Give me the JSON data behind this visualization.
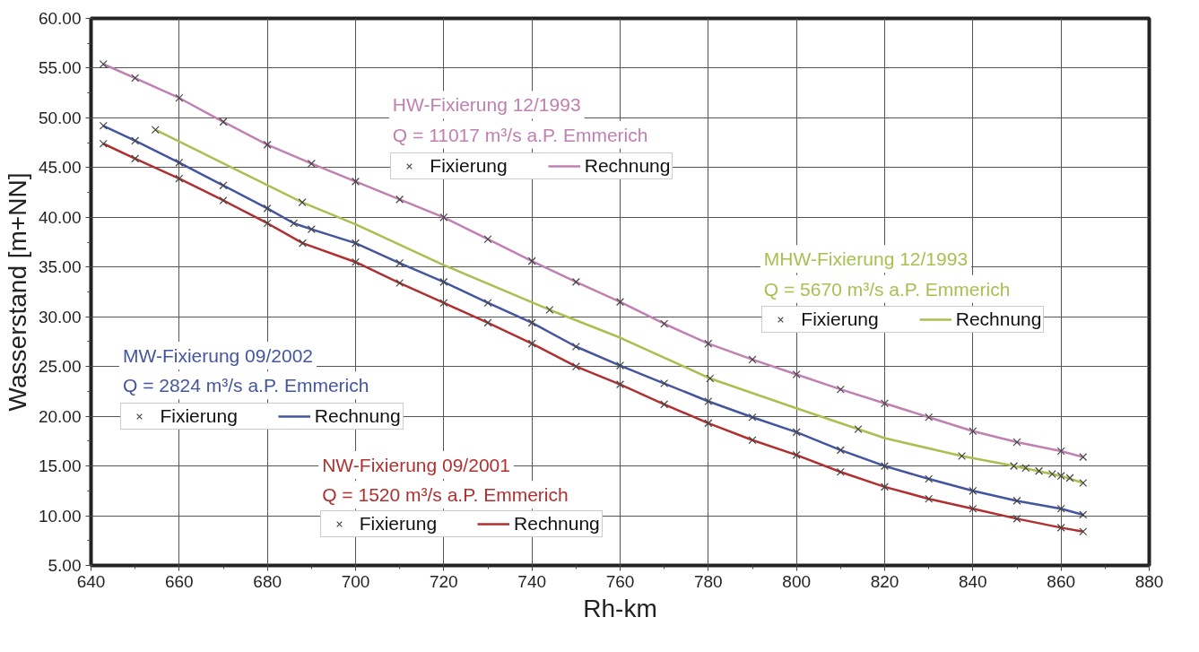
{
  "chart_data": {
    "type": "line",
    "xlabel": "Rh-km",
    "ylabel": "Wasserstand [m+NN]",
    "xlim": [
      640,
      880
    ],
    "xticks": [
      640,
      660,
      680,
      700,
      720,
      740,
      760,
      780,
      800,
      820,
      840,
      860,
      880
    ],
    "ylim": [
      5,
      60
    ],
    "yticks": [
      {
        "value": 5,
        "label": "5.00"
      },
      {
        "value": 10,
        "label": "10.00"
      },
      {
        "value": 15,
        "label": "15.00"
      },
      {
        "value": 20,
        "label": "20.00"
      },
      {
        "value": 25,
        "label": "25.00"
      },
      {
        "value": 30,
        "label": "30.00"
      },
      {
        "value": 35,
        "label": "35.00"
      },
      {
        "value": 40,
        "label": "40.00"
      },
      {
        "value": 45,
        "label": "45.00"
      },
      {
        "value": 50,
        "label": "50.00"
      },
      {
        "value": 55,
        "label": "55.00"
      },
      {
        "value": 60,
        "label": "60.00"
      }
    ],
    "grid": true,
    "legend": "center",
    "annotations": [
      "HW-Fixierung 12/1993",
      "Q = 11017 m³/s a.P. Emmerich",
      "MHW-Fixierung 12/1993",
      "Q = 5670 m³/s a.P. Emmerich",
      "MW-Fixierung 09/2002",
      "Q = 2824 m³/s a.P. Emmerich",
      "NW-Fixierung 09/2001",
      "Q = 1520 m³/s a.P. Emmerich"
    ],
    "series": [
      {
        "name": "Rechnung",
        "color": "#c080b0",
        "marker": "none",
        "x": [
          642.8,
          650,
          660,
          670,
          680,
          690,
          700,
          710,
          720,
          730,
          740,
          750,
          760,
          770,
          780,
          790,
          800,
          810,
          820,
          830,
          840,
          850,
          860,
          865
        ],
        "values": [
          55.4,
          54.0,
          52.0,
          49.6,
          47.3,
          45.4,
          43.6,
          41.8,
          40.0,
          37.8,
          35.6,
          33.5,
          31.5,
          29.3,
          27.3,
          25.7,
          24.2,
          22.7,
          21.3,
          19.9,
          18.5,
          17.4,
          16.5,
          15.9
        ]
      },
      {
        "name": "Fixierung",
        "type": "scatter",
        "color": "#444444",
        "marker": "cross",
        "x": [
          642.8,
          650,
          660,
          670,
          680,
          690,
          700,
          710,
          720,
          730,
          740,
          750,
          760,
          770,
          780,
          790,
          800,
          810,
          820,
          830,
          840,
          850,
          860,
          865
        ],
        "values": [
          55.4,
          54.0,
          52.0,
          49.6,
          47.3,
          45.4,
          43.6,
          41.8,
          40.0,
          37.8,
          35.6,
          33.5,
          31.5,
          29.3,
          27.3,
          25.7,
          24.2,
          22.7,
          21.3,
          19.9,
          18.5,
          17.4,
          16.5,
          15.9
        ]
      },
      {
        "name": "Rechnung",
        "color": "#a8c050",
        "marker": "none",
        "x": [
          654.6,
          687.9,
          700,
          720,
          744,
          760,
          780.4,
          800,
          814,
          820,
          837.5,
          849.3,
          860,
          865
        ],
        "values": [
          48.8,
          41.5,
          39.3,
          35.2,
          30.7,
          27.9,
          23.8,
          20.8,
          18.7,
          17.8,
          16.0,
          15.0,
          14.0,
          13.3
        ]
      },
      {
        "name": "Fixierung",
        "type": "scatter",
        "color": "#444444",
        "marker": "cross",
        "x": [
          654.6,
          687.9,
          744,
          780.4,
          814,
          837.5,
          849.3,
          852,
          855,
          858,
          860,
          862,
          865
        ],
        "values": [
          48.8,
          41.5,
          30.7,
          23.8,
          18.7,
          16.0,
          15.0,
          14.8,
          14.5,
          14.2,
          14.0,
          13.8,
          13.3
        ]
      },
      {
        "name": "Rechnung",
        "color": "#4455a0",
        "marker": "none",
        "x": [
          642.8,
          650,
          660,
          670,
          680,
          686,
          690,
          700,
          710,
          720,
          730,
          740,
          750,
          760,
          770,
          780,
          790,
          800,
          810,
          820,
          830,
          840,
          850,
          860,
          865
        ],
        "values": [
          49.2,
          47.7,
          45.5,
          43.2,
          40.9,
          39.4,
          38.8,
          37.4,
          35.4,
          33.5,
          31.4,
          29.4,
          27.0,
          25.1,
          23.3,
          21.5,
          19.9,
          18.4,
          16.6,
          15.0,
          13.7,
          12.5,
          11.5,
          10.7,
          10.1
        ]
      },
      {
        "name": "Fixierung",
        "type": "scatter",
        "color": "#444444",
        "marker": "cross",
        "x": [
          642.8,
          650,
          660,
          670,
          680,
          686,
          690,
          700,
          710,
          720,
          730,
          740,
          750,
          760,
          770,
          780,
          790,
          800,
          810,
          820,
          830,
          840,
          850,
          860,
          865
        ],
        "values": [
          49.2,
          47.7,
          45.5,
          43.2,
          40.9,
          39.4,
          38.8,
          37.4,
          35.4,
          33.5,
          31.4,
          29.4,
          27.0,
          25.1,
          23.3,
          21.5,
          19.9,
          18.4,
          16.6,
          15.0,
          13.7,
          12.5,
          11.5,
          10.7,
          10.1
        ]
      },
      {
        "name": "Rechnung",
        "color": "#b03030",
        "marker": "none",
        "x": [
          642.8,
          650,
          660,
          670,
          680,
          688,
          700,
          710,
          720,
          730,
          740,
          750,
          760,
          770,
          780,
          790,
          800,
          810,
          820,
          830,
          840,
          850,
          860,
          865
        ],
        "values": [
          47.4,
          45.9,
          43.9,
          41.7,
          39.4,
          37.4,
          35.5,
          33.4,
          31.4,
          29.4,
          27.3,
          25.0,
          23.2,
          21.2,
          19.3,
          17.6,
          16.1,
          14.4,
          12.9,
          11.7,
          10.7,
          9.7,
          8.8,
          8.4
        ]
      },
      {
        "name": "Fixierung",
        "type": "scatter",
        "color": "#444444",
        "marker": "cross",
        "x": [
          642.8,
          650,
          660,
          670,
          680,
          688,
          700,
          710,
          720,
          730,
          740,
          750,
          760,
          770,
          780,
          790,
          800,
          810,
          820,
          830,
          840,
          850,
          860,
          865
        ],
        "values": [
          47.4,
          45.9,
          43.9,
          41.7,
          39.4,
          37.4,
          35.5,
          33.4,
          31.4,
          29.4,
          27.3,
          25.0,
          23.2,
          21.2,
          19.3,
          17.6,
          16.1,
          14.4,
          12.9,
          11.7,
          10.7,
          9.7,
          8.8,
          8.4
        ]
      }
    ]
  }
}
